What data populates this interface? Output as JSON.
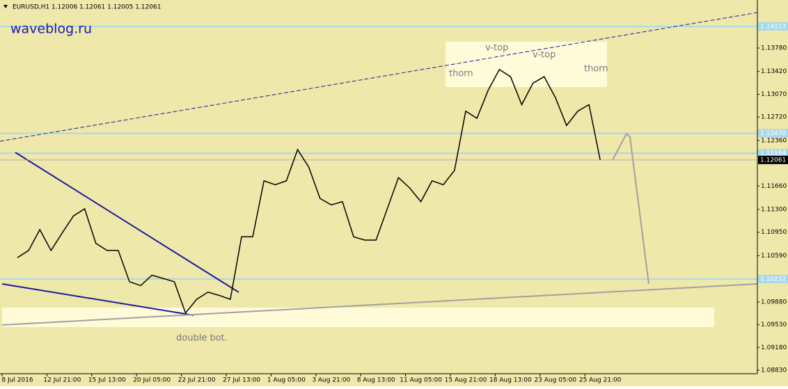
{
  "chart_data": {
    "type": "line",
    "header": "EURUSD,H1  1.12006 1.12061 1.12005 1.12061",
    "watermark": "waveblog.ru",
    "annotations": [
      "thorn",
      "v-top",
      "v-top",
      "thorn",
      "double bot."
    ],
    "categories": [
      "8 Jul 2016",
      null,
      null,
      null,
      "12 Jul 21:00",
      null,
      null,
      null,
      "15 Jul 13:00",
      null,
      null,
      null,
      "20 Jul 05:00",
      null,
      null,
      null,
      "22 Jul 21:00",
      null,
      null,
      null,
      "27 Jul 13:00",
      null,
      null,
      null,
      "1 Aug 05:00",
      null,
      null,
      null,
      "3 Aug 21:00",
      null,
      null,
      null,
      "8 Aug 13:00",
      null,
      null,
      null,
      "11 Aug 05:00",
      null,
      null,
      null,
      "15 Aug 21:00",
      null,
      null,
      null,
      "18 Aug 13:00",
      null,
      null,
      null,
      "23 Aug 05:00",
      null,
      null,
      null,
      "25 Aug 21:00"
    ],
    "series": [
      {
        "name": "EURUSD,H1",
        "color": "#000000",
        "values": [
          1.1056,
          1.1067,
          1.1099,
          1.1067,
          1.1094,
          1.112,
          1.1131,
          1.1078,
          1.1067,
          1.1067,
          1.1019,
          1.1013,
          1.1029,
          1.1024,
          1.1019,
          1.0971,
          1.0992,
          1.1003,
          1.0998,
          1.0992,
          1.1088,
          1.1088,
          1.1174,
          1.1168,
          1.1174,
          1.1222,
          1.1195,
          1.1147,
          1.1137,
          1.1142,
          1.1088,
          1.1083,
          1.1083,
          1.1131,
          1.1179,
          1.1163,
          1.1142,
          1.1174,
          1.1168,
          1.119,
          1.1281,
          1.127,
          1.1313,
          1.1345,
          1.1334,
          1.1291,
          1.1324,
          1.1334,
          1.1302,
          1.1259,
          1.1281,
          1.1291,
          1.1206
        ]
      }
    ],
    "ylim": [
      1.08777,
      1.14518
    ],
    "yticks": [
      {
        "value": 1.0883,
        "label": "1.08830"
      },
      {
        "value": 1.0918,
        "label": "1.09180"
      },
      {
        "value": 1.0953,
        "label": "1.09530"
      },
      {
        "value": 1.0988,
        "label": "1.09880"
      },
      {
        "value": 1.1059,
        "label": "1.10590"
      },
      {
        "value": 1.1095,
        "label": "1.10950"
      },
      {
        "value": 1.113,
        "label": "1.11300"
      },
      {
        "value": 1.1166,
        "label": "1.11660"
      },
      {
        "value": 1.1236,
        "label": "1.12360"
      },
      {
        "value": 1.1272,
        "label": "1.12720"
      },
      {
        "value": 1.1307,
        "label": "1.13070"
      },
      {
        "value": 1.1342,
        "label": "1.13420"
      },
      {
        "value": 1.1378,
        "label": "1.13780"
      }
    ],
    "levels": [
      {
        "value": 1.14113,
        "label": "1.14113"
      },
      {
        "value": 1.1247,
        "label": "1.12470"
      },
      {
        "value": 1.12164,
        "label": "1.12164"
      },
      {
        "value": 1.10232,
        "label": "1.10232"
      }
    ],
    "current": {
      "value": 1.12061,
      "label": "1.12061"
    },
    "level_color": "#a8d8ea",
    "background": "#efe8ab"
  }
}
